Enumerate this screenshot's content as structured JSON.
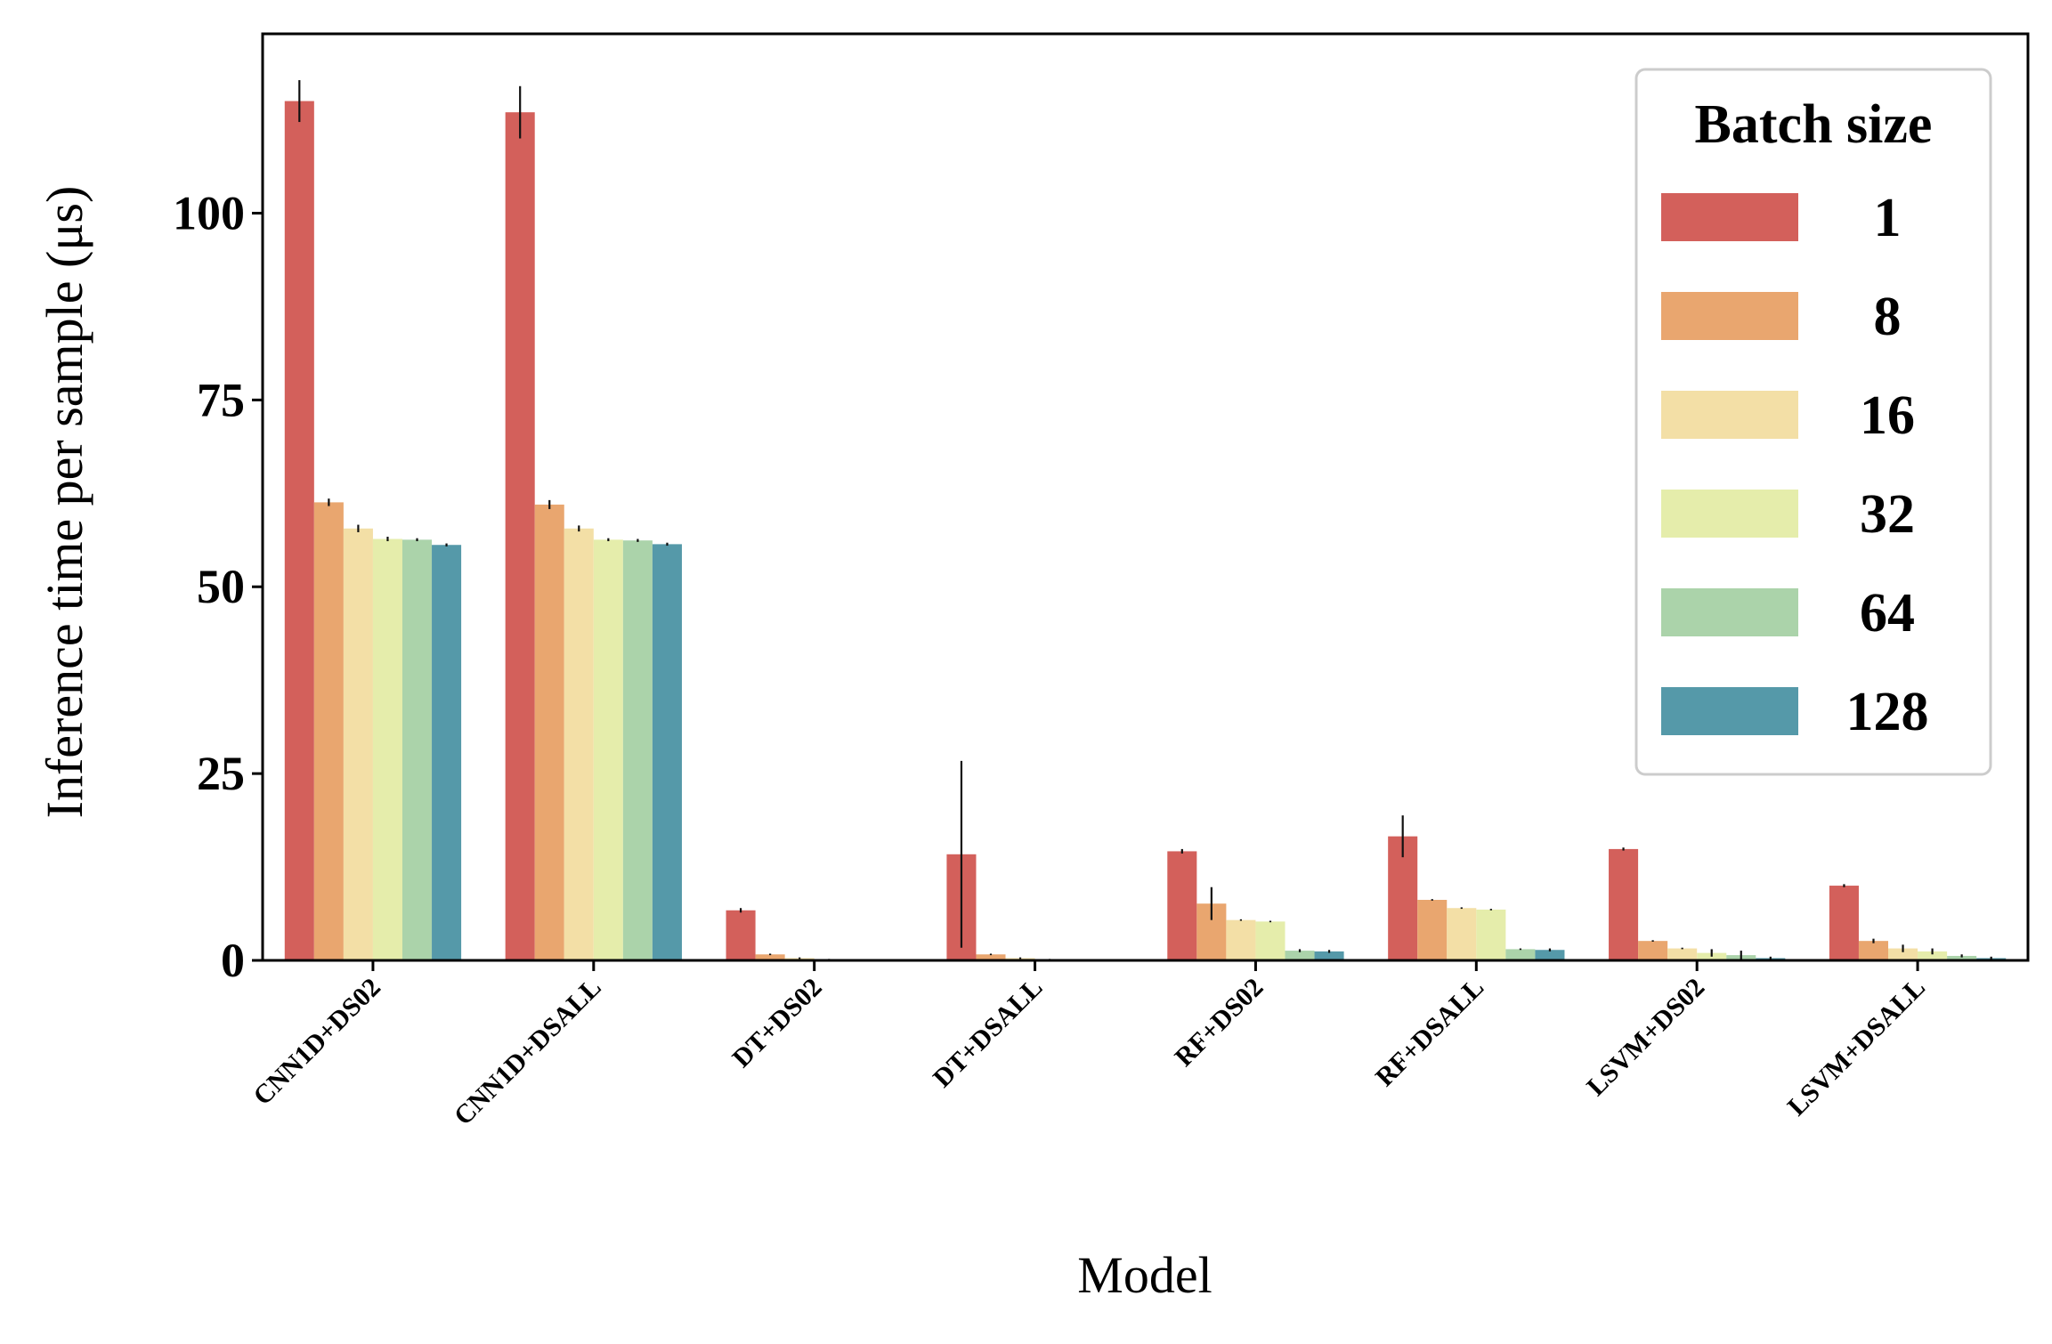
{
  "chart_data": {
    "type": "bar",
    "xlabel": "Model",
    "ylabel": "Inference time per sample (μs)",
    "ylim": [
      0,
      124
    ],
    "yticks": [
      0,
      25,
      50,
      75,
      100
    ],
    "grid": false,
    "legend": {
      "title": "Batch size",
      "placement": "top-right"
    },
    "categories": [
      "CNN1D+DS02",
      "CNN1D+DSALL",
      "DT+DS02",
      "DT+DSALL",
      "RF+DS02",
      "RF+DSALL",
      "LSVM+DS02",
      "LSVM+DSALL"
    ],
    "series": [
      {
        "name": "1",
        "color": "#d3605b",
        "values": [
          115,
          113.5,
          6.7,
          14.2,
          14.6,
          16.6,
          14.9,
          10.0
        ],
        "errors": [
          2.8,
          3.5,
          0.3,
          12.5,
          0.3,
          2.8,
          0.2,
          0.2
        ]
      },
      {
        "name": "8",
        "color": "#e9a66f",
        "values": [
          61.3,
          61.0,
          0.8,
          0.8,
          7.6,
          8.1,
          2.6,
          2.6
        ],
        "errors": [
          0.5,
          0.6,
          0.1,
          0.1,
          2.2,
          0.1,
          0.1,
          0.3
        ]
      },
      {
        "name": "16",
        "color": "#f3dfa6",
        "values": [
          57.8,
          57.8,
          0.3,
          0.3,
          5.4,
          7.0,
          1.6,
          1.6
        ],
        "errors": [
          0.5,
          0.4,
          0.1,
          0.1,
          0.1,
          0.1,
          0.1,
          0.5
        ]
      },
      {
        "name": "32",
        "color": "#e5edab",
        "values": [
          56.4,
          56.3,
          0.15,
          0.15,
          5.2,
          6.8,
          1.0,
          1.2
        ],
        "errors": [
          0.3,
          0.2,
          0.05,
          0.05,
          0.1,
          0.1,
          0.5,
          0.4
        ]
      },
      {
        "name": "64",
        "color": "#abd3aa",
        "values": [
          56.3,
          56.2,
          0.1,
          0.1,
          1.3,
          1.5,
          0.7,
          0.6
        ],
        "errors": [
          0.2,
          0.2,
          0.05,
          0.05,
          0.2,
          0.1,
          0.6,
          0.2
        ]
      },
      {
        "name": "128",
        "color": "#5599a9",
        "values": [
          55.6,
          55.7,
          0.05,
          0.05,
          1.2,
          1.4,
          0.3,
          0.3
        ],
        "errors": [
          0.2,
          0.2,
          0.05,
          0.05,
          0.2,
          0.2,
          0.2,
          0.2
        ]
      }
    ]
  }
}
